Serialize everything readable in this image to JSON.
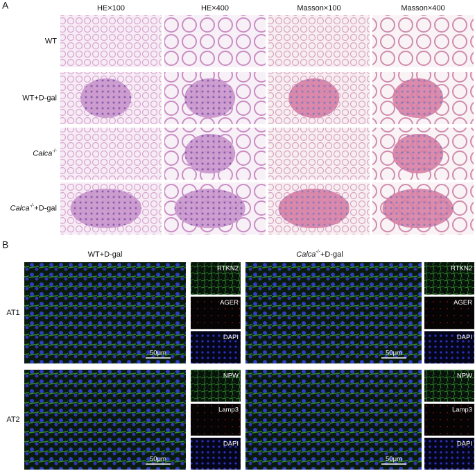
{
  "panel_a": {
    "label": "A",
    "columns": [
      "HE×100",
      "HE×400",
      "Masson×100",
      "Masson×400"
    ],
    "rows": [
      {
        "name": "WT"
      },
      {
        "name": "WT+D-gal"
      },
      {
        "gene": "Calca",
        "superscript": "-/-"
      },
      {
        "gene": "Calca",
        "superscript": "-/-",
        "suffix": "+D-gal"
      }
    ]
  },
  "panel_b": {
    "label": "B",
    "groups": [
      {
        "name": "WT+D-gal"
      },
      {
        "gene": "Calca",
        "superscript": "-/-",
        "suffix": "+D-gal"
      }
    ],
    "rows": [
      {
        "name": "AT1",
        "channels": [
          "RTKN2",
          "AGER",
          "DAPI"
        ]
      },
      {
        "name": "AT2",
        "channels": [
          "NPW",
          "Lamp3",
          "DAPI"
        ]
      }
    ],
    "scale_bar": "50μm"
  }
}
